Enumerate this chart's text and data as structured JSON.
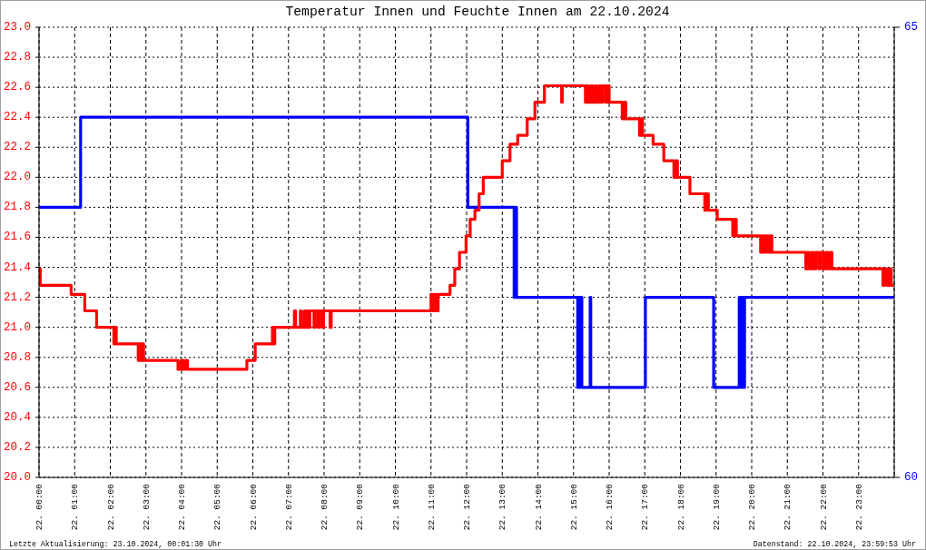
{
  "chart_data": {
    "type": "step",
    "title": "Temperatur Innen und Feuchte Innen am 22.10.2024",
    "annotations": [
      "Letzte Aktualisierung: 23.10.2024, 00:01:30 Uhr",
      "Datenstand: 22.10.2024, 23:59:53 Uhr"
    ],
    "xlim": [
      "2024-10-22T00:00",
      "2024-10-23T00:00"
    ],
    "xticks": [
      {
        "value": "2024-10-22T00:00",
        "label": "22. 00:00"
      },
      {
        "value": "2024-10-22T01:00",
        "label": "22. 01:00"
      },
      {
        "value": "2024-10-22T02:00",
        "label": "22. 02:00"
      },
      {
        "value": "2024-10-22T03:00",
        "label": "22. 03:00"
      },
      {
        "value": "2024-10-22T04:00",
        "label": "22. 04:00"
      },
      {
        "value": "2024-10-22T05:00",
        "label": "22. 05:00"
      },
      {
        "value": "2024-10-22T06:00",
        "label": "22. 06:00"
      },
      {
        "value": "2024-10-22T07:00",
        "label": "22. 07:00"
      },
      {
        "value": "2024-10-22T08:00",
        "label": "22. 08:00"
      },
      {
        "value": "2024-10-22T09:00",
        "label": "22. 09:00"
      },
      {
        "value": "2024-10-22T10:00",
        "label": "22. 10:00"
      },
      {
        "value": "2024-10-22T11:00",
        "label": "22. 11:00"
      },
      {
        "value": "2024-10-22T12:00",
        "label": "22. 12:00"
      },
      {
        "value": "2024-10-22T13:00",
        "label": "22. 13:00"
      },
      {
        "value": "2024-10-22T14:00",
        "label": "22. 14:00"
      },
      {
        "value": "2024-10-22T15:00",
        "label": "22. 15:00"
      },
      {
        "value": "2024-10-22T16:00",
        "label": "22. 16:00"
      },
      {
        "value": "2024-10-22T17:00",
        "label": "22. 17:00"
      },
      {
        "value": "2024-10-22T18:00",
        "label": "22. 18:00"
      },
      {
        "value": "2024-10-22T19:00",
        "label": "22. 19:00"
      },
      {
        "value": "2024-10-22T20:00",
        "label": "22. 20:00"
      },
      {
        "value": "2024-10-22T21:00",
        "label": "22. 21:00"
      },
      {
        "value": "2024-10-22T22:00",
        "label": "22. 22:00"
      },
      {
        "value": "2024-10-22T23:00",
        "label": "22. 23:00"
      }
    ],
    "ylim": [
      20,
      23
    ],
    "yticks": [
      {
        "value": 20,
        "label": "20.0"
      },
      20.2,
      20.4,
      20.6,
      20.8,
      {
        "value": 21,
        "label": "21.0"
      },
      21.2,
      21.4,
      21.6,
      21.8,
      {
        "value": 22,
        "label": "22.0"
      },
      22.2,
      22.4,
      22.6,
      22.8,
      {
        "value": 23,
        "label": "23.0"
      }
    ],
    "y2lim": [
      60,
      65
    ],
    "y2ticks": [
      60,
      65
    ],
    "grid": true,
    "series": [
      {
        "color": "#ff0000",
        "x": [
          "2024-10-22T00:00",
          "2024-10-22T00:02",
          "2024-10-22T00:54",
          "2024-10-22T01:17",
          "2024-10-22T01:37",
          "2024-10-22T02:06",
          "2024-10-22T02:08",
          "2024-10-22T02:10",
          "2024-10-22T02:47",
          "2024-10-22T02:49",
          "2024-10-22T02:52",
          "2024-10-22T02:54",
          "2024-10-22T02:56",
          "2024-10-22T03:54",
          "2024-10-22T03:59",
          "2024-10-22T04:03",
          "2024-10-22T04:06",
          "2024-10-22T04:10",
          "2024-10-22T05:50",
          "2024-10-22T06:04",
          "2024-10-22T06:33",
          "2024-10-22T06:35",
          "2024-10-22T06:37",
          "2024-10-22T07:10",
          "2024-10-22T07:12",
          "2024-10-22T07:20",
          "2024-10-22T07:22",
          "2024-10-22T07:27",
          "2024-10-22T07:29",
          "2024-10-22T07:31",
          "2024-10-22T07:33",
          "2024-10-22T07:36",
          "2024-10-22T07:43",
          "2024-10-22T07:45",
          "2024-10-22T07:50",
          "2024-10-22T07:52",
          "2024-10-22T07:57",
          "2024-10-22T07:59",
          "2024-10-22T08:10",
          "2024-10-22T08:12",
          "2024-10-22T11:00",
          "2024-10-22T11:03",
          "2024-10-22T11:06",
          "2024-10-22T11:09",
          "2024-10-22T11:12",
          "2024-10-22T11:32",
          "2024-10-22T11:40",
          "2024-10-22T11:48",
          "2024-10-22T11:59",
          "2024-10-22T12:06",
          "2024-10-22T12:14",
          "2024-10-22T12:21",
          "2024-10-22T12:28",
          "2024-10-22T13:00",
          "2024-10-22T13:13",
          "2024-10-22T13:26",
          "2024-10-22T13:42",
          "2024-10-22T13:55",
          "2024-10-22T14:11",
          "2024-10-22T14:40",
          "2024-10-22T14:41",
          "2024-10-22T15:20",
          "2024-10-22T15:22",
          "2024-10-22T15:25",
          "2024-10-22T15:29",
          "2024-10-22T15:32",
          "2024-10-22T15:36",
          "2024-10-22T15:38",
          "2024-10-22T15:42",
          "2024-10-22T15:46",
          "2024-10-22T15:49",
          "2024-10-22T15:54",
          "2024-10-22T15:57",
          "2024-10-22T16:00",
          "2024-10-22T16:22",
          "2024-10-22T16:25",
          "2024-10-22T16:28",
          "2024-10-22T16:51",
          "2024-10-22T16:53",
          "2024-10-22T16:56",
          "2024-10-22T17:14",
          "2024-10-22T17:32",
          "2024-10-22T17:49",
          "2024-10-22T17:52",
          "2024-10-22T17:55",
          "2024-10-22T18:16",
          "2024-10-22T18:41",
          "2024-10-22T18:43",
          "2024-10-22T18:47",
          "2024-10-22T19:02",
          "2024-10-22T19:28",
          "2024-10-22T19:31",
          "2024-10-22T19:34",
          "2024-10-22T20:15",
          "2024-10-22T20:18",
          "2024-10-22T20:21",
          "2024-10-22T20:24",
          "2024-10-22T20:28",
          "2024-10-22T20:31",
          "2024-10-22T20:34",
          "2024-10-22T21:31",
          "2024-10-22T21:34",
          "2024-10-22T21:37",
          "2024-10-22T21:41",
          "2024-10-22T21:44",
          "2024-10-22T21:48",
          "2024-10-22T21:53",
          "2024-10-22T21:56",
          "2024-10-22T22:01",
          "2024-10-22T22:05",
          "2024-10-22T22:09",
          "2024-10-22T22:12",
          "2024-10-22T22:15",
          "2024-10-22T23:41",
          "2024-10-22T23:44",
          "2024-10-22T23:48",
          "2024-10-22T23:52",
          "2024-10-22T23:55",
          "2024-10-22T23:59"
        ],
        "values": [
          21.39,
          21.28,
          21.22,
          21.11,
          21.0,
          20.89,
          21.0,
          20.89,
          20.78,
          20.89,
          20.78,
          20.89,
          20.78,
          20.72,
          20.78,
          20.72,
          20.78,
          20.72,
          20.78,
          20.89,
          21.0,
          20.89,
          21.0,
          21.11,
          21.0,
          21.11,
          21.0,
          21.11,
          21.0,
          21.11,
          21.0,
          21.11,
          21.0,
          21.11,
          21.0,
          21.11,
          21.0,
          21.11,
          21.0,
          21.11,
          21.22,
          21.11,
          21.22,
          21.11,
          21.22,
          21.28,
          21.39,
          21.5,
          21.61,
          21.72,
          21.78,
          21.89,
          22.0,
          22.11,
          22.22,
          22.28,
          22.39,
          22.5,
          22.61,
          22.5,
          22.61,
          22.5,
          22.61,
          22.5,
          22.61,
          22.5,
          22.61,
          22.5,
          22.61,
          22.5,
          22.61,
          22.5,
          22.61,
          22.5,
          22.39,
          22.5,
          22.39,
          22.28,
          22.39,
          22.28,
          22.22,
          22.11,
          22.0,
          22.11,
          22.0,
          21.89,
          21.78,
          21.89,
          21.78,
          21.72,
          21.61,
          21.72,
          21.61,
          21.5,
          21.61,
          21.5,
          21.61,
          21.5,
          21.61,
          21.5,
          21.39,
          21.5,
          21.39,
          21.5,
          21.39,
          21.5,
          21.39,
          21.5,
          21.39,
          21.5,
          21.39,
          21.5,
          21.39,
          21.28,
          21.39,
          21.28,
          21.39,
          21.28,
          21.28
        ]
      },
      {
        "color": "#0000ff",
        "axis": "y2",
        "x": [
          "2024-10-22T00:00",
          "2024-10-22T01:10",
          "2024-10-22T12:02",
          "2024-10-22T13:20",
          "2024-10-22T13:22",
          "2024-10-22T13:24",
          "2024-10-22T15:07",
          "2024-10-22T15:08",
          "2024-10-22T15:10",
          "2024-10-22T15:12",
          "2024-10-22T15:14",
          "2024-10-22T15:28",
          "2024-10-22T15:29",
          "2024-10-22T17:01",
          "2024-10-22T18:56",
          "2024-10-22T19:39",
          "2024-10-22T19:41",
          "2024-10-22T19:43",
          "2024-10-22T19:46",
          "2024-10-22T19:48",
          "2024-10-22T23:59"
        ],
        "values": [
          63,
          64,
          63,
          62,
          63,
          62,
          61,
          62,
          61,
          62,
          61,
          62,
          61,
          62,
          61,
          62,
          61,
          62,
          61,
          62,
          62
        ]
      }
    ]
  }
}
